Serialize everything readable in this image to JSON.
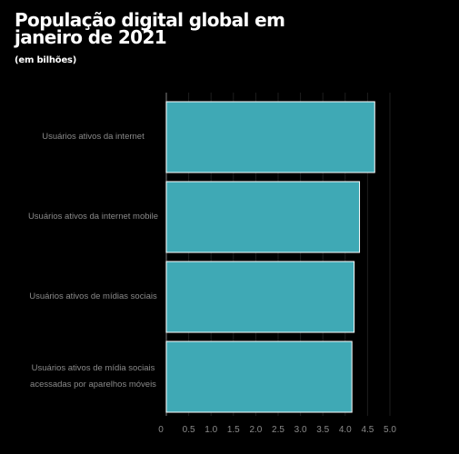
{
  "chart_data": {
    "type": "bar",
    "orientation": "horizontal",
    "title": "População digital global em janeiro de 2021",
    "subtitle": "(em bilhões)",
    "categories": [
      "Usuários ativos da internet",
      "Usuários ativos da internet mobile",
      "Usuários ativos de mídias sociais",
      "Usuários ativos de mídia sociais acessadas por aparelhos móveis"
    ],
    "values": [
      4.66,
      4.32,
      4.2,
      4.15
    ],
    "xlim": [
      0,
      5.0
    ],
    "ticks": [
      "0",
      "0.5",
      "1.0",
      "1.5",
      "2.0",
      "2.5",
      "3.0",
      "3.5",
      "4.0",
      "4.5",
      "5.0"
    ],
    "grid": true,
    "colors": {
      "bar": "#3fa9b5",
      "bar_border": "#ffffff",
      "background": "#000000",
      "text": "#ffffff",
      "muted": "#8a8a8a",
      "grid": "#1e1e1e"
    }
  }
}
